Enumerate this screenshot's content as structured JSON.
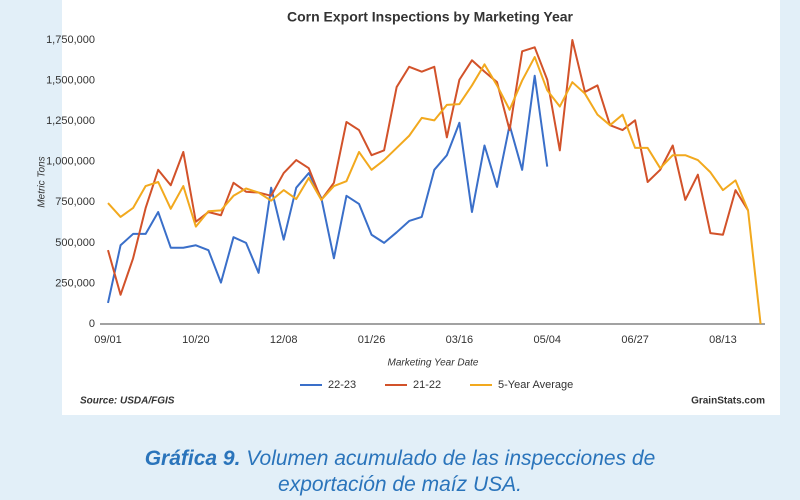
{
  "chart_data": {
    "type": "line",
    "title": "Corn Export Inspections by Marketing Year",
    "y_label": "Metric Tons",
    "x_label": "Marketing Year Date",
    "source": "Source: USDA/FGIS",
    "credit": "GrainStats.com",
    "grid": false,
    "legend": "bottom",
    "ylim": [
      0,
      1750000
    ],
    "yticks": [
      0,
      {
        "value": 250000,
        "label": "250,000"
      },
      {
        "value": 500000,
        "label": "500,000"
      },
      {
        "value": 750000,
        "label": "750,000"
      },
      {
        "value": 1000000,
        "label": "1,000,000"
      },
      {
        "value": 1250000,
        "label": "1,250,000"
      },
      {
        "value": 1500000,
        "label": "1,500,000"
      },
      {
        "value": 1750000,
        "label": "1,750,000"
      }
    ],
    "categories": [
      "09/01",
      null,
      null,
      null,
      null,
      null,
      null,
      "10/20",
      null,
      null,
      null,
      null,
      null,
      null,
      "12/08",
      null,
      null,
      null,
      null,
      null,
      null,
      "01/26",
      null,
      null,
      null,
      null,
      null,
      null,
      "03/16",
      null,
      null,
      null,
      null,
      null,
      null,
      "05/04",
      null,
      null,
      null,
      null,
      null,
      null,
      "06/27",
      null,
      null,
      null,
      null,
      null,
      null,
      "08/13",
      null,
      null,
      null
    ],
    "series": [
      {
        "name": "22-23",
        "color": "#3a6fc9",
        "values": [
          130000,
          485000,
          555000,
          555000,
          690000,
          470000,
          470000,
          485000,
          455000,
          255000,
          535000,
          500000,
          315000,
          840000,
          520000,
          840000,
          930000,
          775000,
          405000,
          790000,
          740000,
          550000,
          500000,
          565000,
          635000,
          660000,
          950000,
          1040000,
          1240000,
          690000,
          1100000,
          845000,
          1225000,
          950000,
          1530000,
          970000,
          null,
          null,
          null,
          null,
          null,
          null,
          null,
          null,
          null,
          null,
          null,
          null,
          null,
          null,
          null,
          null,
          null
        ]
      },
      {
        "name": "21-22",
        "color": "#d2522a",
        "values": [
          455000,
          180000,
          405000,
          715000,
          950000,
          855000,
          1060000,
          630000,
          690000,
          670000,
          870000,
          815000,
          810000,
          790000,
          930000,
          1010000,
          960000,
          765000,
          870000,
          1245000,
          1195000,
          1040000,
          1070000,
          1460000,
          1585000,
          1555000,
          1585000,
          1150000,
          1505000,
          1625000,
          1555000,
          1490000,
          1195000,
          1680000,
          1705000,
          1505000,
          1070000,
          1750000,
          1430000,
          1470000,
          1225000,
          1195000,
          1255000,
          875000,
          950000,
          1100000,
          765000,
          920000,
          560000,
          550000,
          825000,
          700000,
          null
        ]
      },
      {
        "name": "5-Year Average",
        "color": "#f2a91e",
        "values": [
          745000,
          660000,
          715000,
          850000,
          875000,
          710000,
          850000,
          600000,
          695000,
          700000,
          790000,
          835000,
          810000,
          760000,
          825000,
          770000,
          900000,
          765000,
          850000,
          880000,
          1060000,
          950000,
          1010000,
          1085000,
          1160000,
          1270000,
          1255000,
          1350000,
          1355000,
          1470000,
          1600000,
          1470000,
          1320000,
          1500000,
          1645000,
          1440000,
          1340000,
          1490000,
          1420000,
          1290000,
          1225000,
          1290000,
          1085000,
          1085000,
          960000,
          1040000,
          1040000,
          1010000,
          935000,
          825000,
          885000,
          700000,
          0
        ]
      }
    ]
  },
  "caption": {
    "label": "Gráfica 9.",
    "text": "Volumen acumulado de las inspecciones de exportación de maíz USA."
  }
}
